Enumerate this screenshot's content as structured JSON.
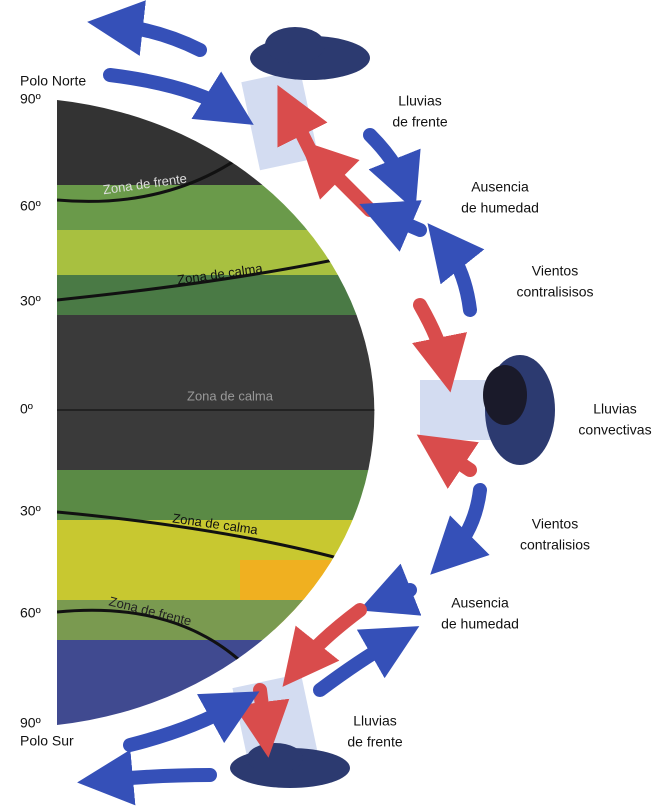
{
  "poles": {
    "north": "Polo Norte",
    "south": "Polo Sur"
  },
  "latitudes": [
    "90º",
    "60º",
    "30º",
    "0º",
    "30º",
    "60º",
    "90º"
  ],
  "zones": [
    "Zona de frente",
    "Zona de calma",
    "Zona de calma",
    "Zona de calma",
    "Zona de frente"
  ],
  "annotations": [
    {
      "lines": [
        "Lluvias",
        "de frente"
      ]
    },
    {
      "lines": [
        "Ausencia",
        "de humedad"
      ]
    },
    {
      "lines": [
        "Vientos",
        "contralisisos"
      ]
    },
    {
      "lines": [
        "Lluvias",
        "convectivas"
      ]
    },
    {
      "lines": [
        "Vientos",
        "contralisios"
      ]
    },
    {
      "lines": [
        "Ausencia",
        "de humedad"
      ]
    },
    {
      "lines": [
        "Lluvias",
        "de frente"
      ]
    }
  ]
}
